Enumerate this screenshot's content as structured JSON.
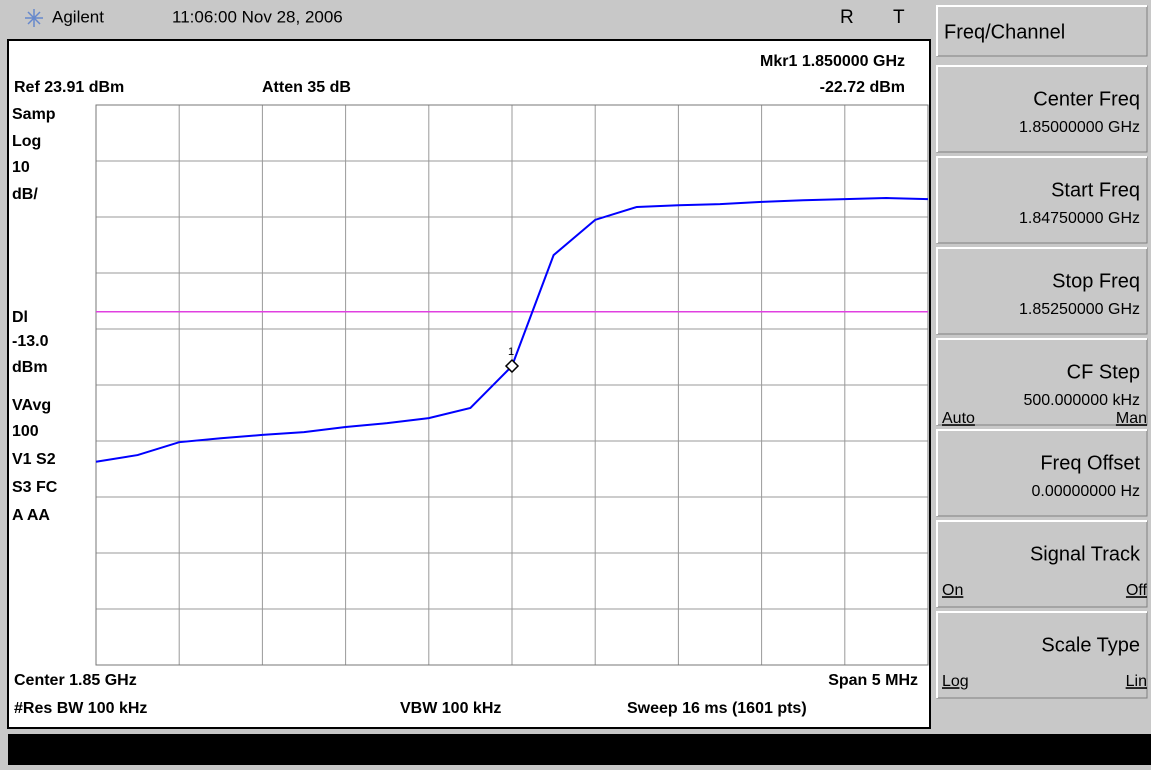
{
  "header": {
    "brand": "Agilent",
    "datetime": "11:06:00  Nov 28, 2006",
    "flag_r": "R",
    "flag_t": "T"
  },
  "display": {
    "marker_readout": "Mkr1  1.850000 GHz",
    "ref": "Ref 23.91 dBm",
    "atten": "Atten 35 dB",
    "marker_level": "-22.72 dBm",
    "side_labels": [
      "Samp",
      "Log",
      "10",
      "dB/",
      "Dl",
      "-13.0",
      "dBm",
      "VAvg",
      "100",
      "V1  S2",
      "S3  FC",
      "A   AA"
    ],
    "center": "Center 1.85 GHz",
    "span": "Span 5 MHz",
    "res_bw": "#Res BW 100 kHz",
    "vbw": "VBW 100 kHz",
    "sweep": "Sweep 16 ms (1601 pts)"
  },
  "trace": {
    "type": "line",
    "color": "#0000ff",
    "ylim": [
      -76.09,
      23.91
    ],
    "grid": true,
    "display_line": -13,
    "display_line_color": "#e040e0",
    "marker_index": 10,
    "marker_label": "1",
    "values": [
      -39.8,
      -38.6,
      -36.3,
      -35.6,
      -35.0,
      -34.5,
      -33.6,
      -32.9,
      -32.0,
      -30.2,
      -22.7,
      -2.9,
      3.4,
      5.7,
      6.0,
      6.2,
      6.6,
      6.9,
      7.1,
      7.3,
      7.1
    ]
  },
  "menu": {
    "title": "Freq/Channel",
    "keys": [
      {
        "label": "Center Freq",
        "value": "1.85000000 GHz"
      },
      {
        "label": "Start Freq",
        "value": "1.84750000 GHz"
      },
      {
        "label": "Stop Freq",
        "value": "1.85250000 GHz"
      },
      {
        "label": "CF Step",
        "value": "500.000000 kHz",
        "left": "Auto",
        "right": "Man"
      },
      {
        "label": "Freq Offset",
        "value": "0.00000000  Hz"
      },
      {
        "label": "Signal Track",
        "left": "On",
        "right": "Off"
      },
      {
        "label": "Scale Type",
        "left": "Log",
        "right": "Lin"
      }
    ]
  }
}
